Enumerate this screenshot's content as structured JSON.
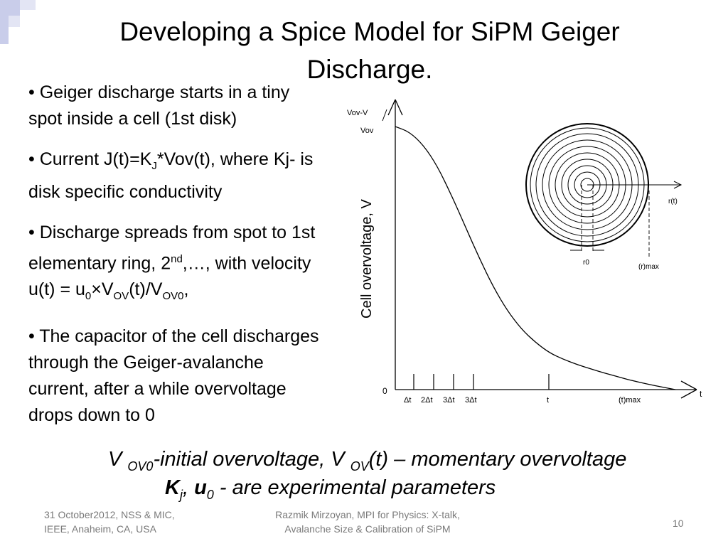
{
  "slide": {
    "title_line1": "Developing a Spice Model for SiPM Geiger",
    "title_line2": "Discharge."
  },
  "bullets": {
    "b1": "Geiger discharge starts in a tiny spot inside a cell (1st disk)",
    "b2_pre": "Current J(t)=K",
    "b2_sub": "J",
    "b2_post": "*Vov(t), where Kj-  is disk specific conductivity",
    "b3_pre": "Discharge spreads from spot to 1st elementary ring, 2",
    "b3_sup": "nd",
    "b3_mid": ",…, with velocity u(t) = u",
    "b3_sub0": "0",
    "b3_x": "×V",
    "b3_subov": "OV",
    "b3_t": "(t)/V",
    "b3_subovo": "OV0",
    "b3_end": ",",
    "b4": "The capacitor of the cell discharges through the Geiger-avalanche current, after a while overvoltage drops down to 0"
  },
  "figure": {
    "ylabel": "Cell  overvoltage, V",
    "y_top_label": "Vov-V",
    "y_vov_label": "Vov",
    "origin_label": "0",
    "x_axis_label": "t",
    "x_ticks": [
      "Δt",
      "2Δt",
      "3Δt",
      "3Δt",
      "t",
      "(t)max"
    ],
    "rt_label": "r(t)",
    "r0_label": "r0",
    "rmax_label": "(r)max"
  },
  "chart_data": {
    "type": "line",
    "title": "",
    "xlabel": "t",
    "ylabel": "Cell  overvoltage, V",
    "x_tick_labels": [
      "Δt",
      "2Δt",
      "3Δt",
      "3Δt",
      "t",
      "(t)max"
    ],
    "series": [
      {
        "x": [
          0,
          0.05,
          0.1,
          0.15,
          0.2,
          0.25,
          0.3,
          0.35,
          0.4,
          0.45,
          0.5,
          0.55,
          0.6,
          0.65,
          0.7,
          0.75,
          0.8,
          0.85,
          0.9,
          0.95,
          1.0
        ],
        "values": [
          1.0,
          0.98,
          0.93,
          0.85,
          0.74,
          0.62,
          0.5,
          0.39,
          0.3,
          0.23,
          0.18,
          0.14,
          0.115,
          0.095,
          0.078,
          0.062,
          0.047,
          0.033,
          0.021,
          0.01,
          0.0
        ]
      }
    ],
    "grid": false
  },
  "equations": {
    "v": "V ",
    "sub_ovo": "OV0",
    "text1": "-initial overvoltage, V ",
    "sub_ov": "OV",
    "text2": "(t) – momentary overvoltage",
    "k": "K",
    "k_sub": "j",
    "comma": ", ",
    "u": "u",
    "u_sub": "0",
    "text3": " - are experimental parameters"
  },
  "footer": {
    "left_line1": "31 October2012, NSS & MIC,",
    "left_line2": "IEEE, Anaheim, CA, USA",
    "center_line1": "Razmik Mirzoyan, MPI for Physics: X-talk,",
    "center_line2": "Avalanche Size & Calibration of SiPM",
    "page_number": "10"
  }
}
